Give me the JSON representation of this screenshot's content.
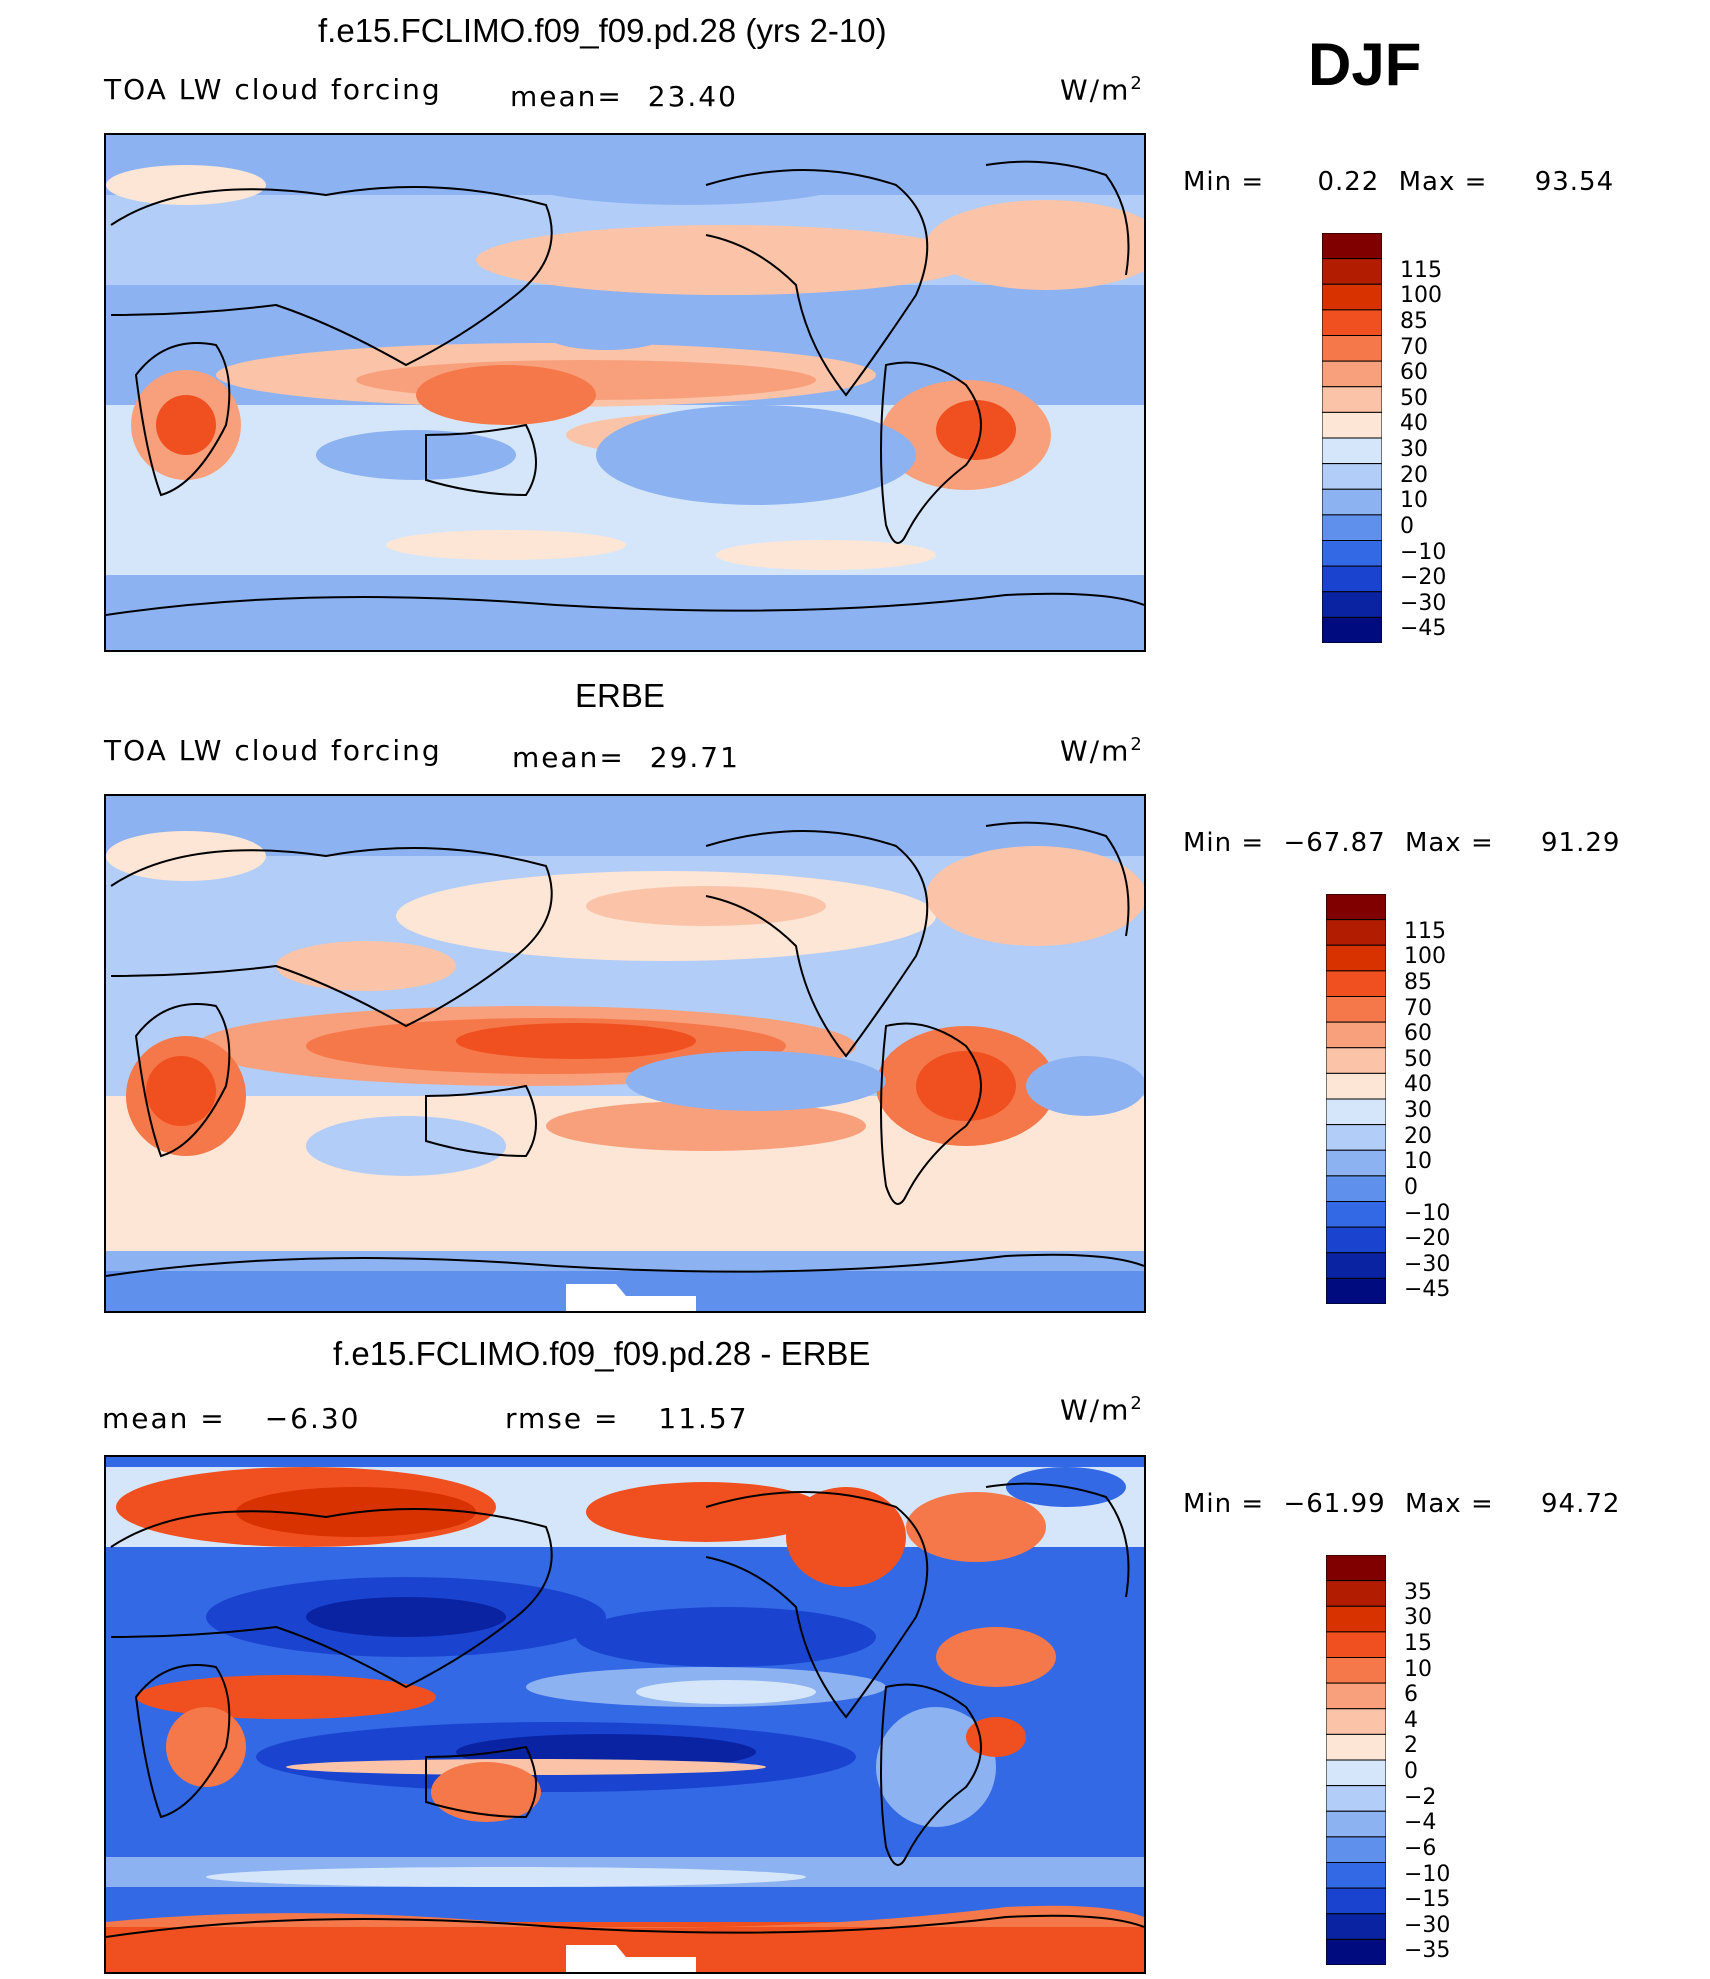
{
  "season": "DJF",
  "units_label": "W/m",
  "units_sup": "2",
  "panels": [
    {
      "title": "f.e15.FCLIMO.f09_f09.pd.28 (yrs 2-10)",
      "left_label": "TOA LW cloud forcing",
      "stat1_label": "mean=",
      "stat1_value": "23.40",
      "stat2_label": "",
      "stat2_value": "",
      "min_label": "Min  =",
      "min_value": "0.22",
      "max_label": "Max  =",
      "max_value": "93.54",
      "colorbar": [
        "115",
        "100",
        "85",
        "70",
        "60",
        "50",
        "40",
        "30",
        "20",
        "10",
        "0",
        "−10",
        "−20",
        "−30",
        "−45"
      ]
    },
    {
      "title": "ERBE",
      "left_label": "TOA LW cloud forcing",
      "stat1_label": "mean=",
      "stat1_value": "29.71",
      "stat2_label": "",
      "stat2_value": "",
      "min_label": "Min  =",
      "min_value": "−67.87",
      "max_label": "Max  =",
      "max_value": "91.29",
      "colorbar": [
        "115",
        "100",
        "85",
        "70",
        "60",
        "50",
        "40",
        "30",
        "20",
        "10",
        "0",
        "−10",
        "−20",
        "−30",
        "−45"
      ]
    },
    {
      "title": "f.e15.FCLIMO.f09_f09.pd.28 - ERBE",
      "left_label": "mean  =",
      "stat1_label": "",
      "stat1_value": "−6.30",
      "stat2_label": "rmse  =",
      "stat2_value": "11.57",
      "min_label": "Min  =",
      "min_value": "−61.99",
      "max_label": "Max  =",
      "max_value": "94.72",
      "colorbar": [
        "35",
        "30",
        "15",
        "10",
        "6",
        "4",
        "2",
        "0",
        "−2",
        "−4",
        "−6",
        "−10",
        "−15",
        "−30",
        "−35"
      ]
    }
  ],
  "colorbar_colors": [
    "#800000",
    "#b21c00",
    "#d83200",
    "#f05020",
    "#f5784a",
    "#f8a07c",
    "#fbc4a8",
    "#fde6d6",
    "#d6e6fa",
    "#b2cdf7",
    "#8cb2f2",
    "#5f90ec",
    "#3469e6",
    "#1a44cf",
    "#0a23a3",
    "#000b80"
  ]
}
